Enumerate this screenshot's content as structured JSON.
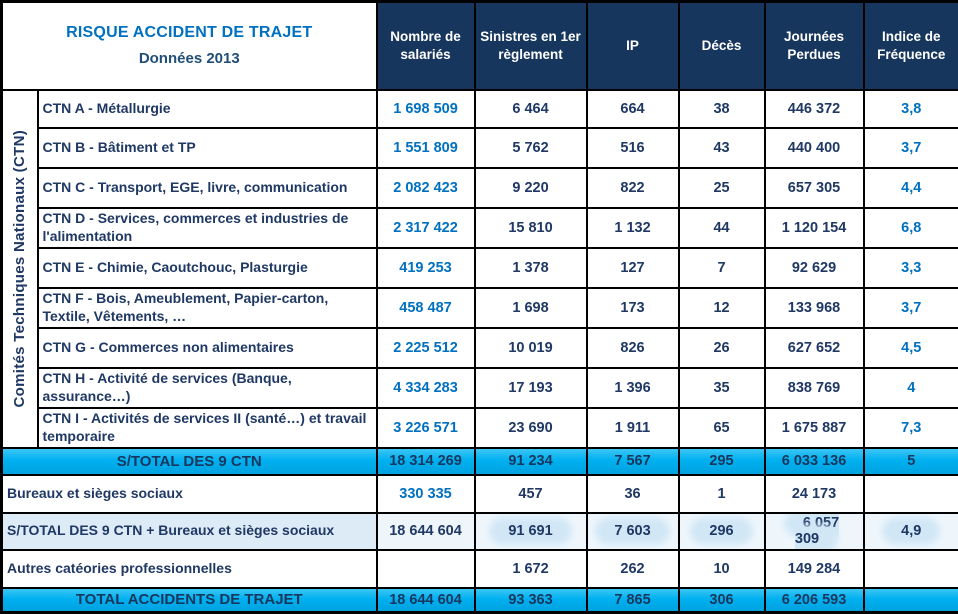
{
  "title": {
    "line1": "RISQUE ACCIDENT DE TRAJET",
    "line2": "Données 2013"
  },
  "columns": [
    "Nombre de salariés",
    "Sinistres en 1er règlement",
    "IP",
    "Décès",
    "Journées Perdues",
    "Indice de Fréquence"
  ],
  "sidebar_label": "Comités Techniques Nationaux  (CTN)",
  "colors": {
    "header_bg": "#17365D",
    "accent_blue": "#0070C0",
    "navy_text": "#1F3864",
    "cyan_row": "#00B0F0",
    "light_row": "#DDEBF7"
  },
  "rows": [
    {
      "label": "CTN A - Métallurgie",
      "salaries": "1 698 509",
      "sinistres": "6 464",
      "ip": "664",
      "deces": "38",
      "journees": "446 372",
      "indice": "3,8"
    },
    {
      "label": "CTN B - Bâtiment et TP",
      "salaries": "1 551 809",
      "sinistres": "5 762",
      "ip": "516",
      "deces": "43",
      "journees": "440 400",
      "indice": "3,7"
    },
    {
      "label": "CTN C - Transport, EGE, livre, communication",
      "salaries": "2 082 423",
      "sinistres": "9 220",
      "ip": "822",
      "deces": "25",
      "journees": "657 305",
      "indice": "4,4"
    },
    {
      "label": "CTN D - Services, commerces et industries de l'alimentation",
      "salaries": "2 317 422",
      "sinistres": "15 810",
      "ip": "1 132",
      "deces": "44",
      "journees": "1 120 154",
      "indice": "6,8"
    },
    {
      "label": "CTN E - Chimie, Caoutchouc, Plasturgie",
      "salaries": "419 253",
      "sinistres": "1 378",
      "ip": "127",
      "deces": "7",
      "journees": "92 629",
      "indice": "3,3"
    },
    {
      "label": "CTN F - Bois, Ameublement, Papier-carton, Textile, Vêtements, …",
      "salaries": "458 487",
      "sinistres": "1 698",
      "ip": "173",
      "deces": "12",
      "journees": "133 968",
      "indice": "3,7"
    },
    {
      "label": "CTN G - Commerces non alimentaires",
      "salaries": "2 225 512",
      "sinistres": "10 019",
      "ip": "826",
      "deces": "26",
      "journees": "627 652",
      "indice": "4,5"
    },
    {
      "label": "CTN H - Activité de services  (Banque, assurance…)",
      "salaries": "4 334 283",
      "sinistres": "17 193",
      "ip": "1 396",
      "deces": "35",
      "journees": "838 769",
      "indice": "4"
    },
    {
      "label": "CTN I - Activités de services II (santé…) et travail temporaire",
      "salaries": "3 226 571",
      "sinistres": "23 690",
      "ip": "1 911",
      "deces": "65",
      "journees": "1 675 887",
      "indice": "7,3"
    }
  ],
  "totals": {
    "stotal9": {
      "label": "S/TOTAL DES 9 CTN",
      "salaries": "18 314 269",
      "sinistres": "91 234",
      "ip": "7 567",
      "deces": "295",
      "journees": "6 033 136",
      "indice": "5"
    },
    "bureaux": {
      "label": "Bureaux et sièges sociaux",
      "salaries": "330 335",
      "sinistres": "457",
      "ip": "36",
      "deces": "1",
      "journees": "24 173",
      "indice": ""
    },
    "stotal_bureaux": {
      "label": "S/TOTAL DES 9 CTN + Bureaux et sièges sociaux",
      "salaries": "18 644 604",
      "sinistres": "91 691",
      "ip": "7 603",
      "deces": "296",
      "journees": "6 057 309",
      "indice": "4,9"
    },
    "autres": {
      "label": "Autres catéories professionnelles",
      "salaries": "",
      "sinistres": "1 672",
      "ip": "262",
      "deces": "10",
      "journees": "149 284",
      "indice": ""
    },
    "total": {
      "label": "TOTAL ACCIDENTS DE TRAJET",
      "salaries": "18 644 604",
      "sinistres": "93 363",
      "ip": "7 865",
      "deces": "306",
      "journees": "6 206 593",
      "indice": ""
    }
  }
}
